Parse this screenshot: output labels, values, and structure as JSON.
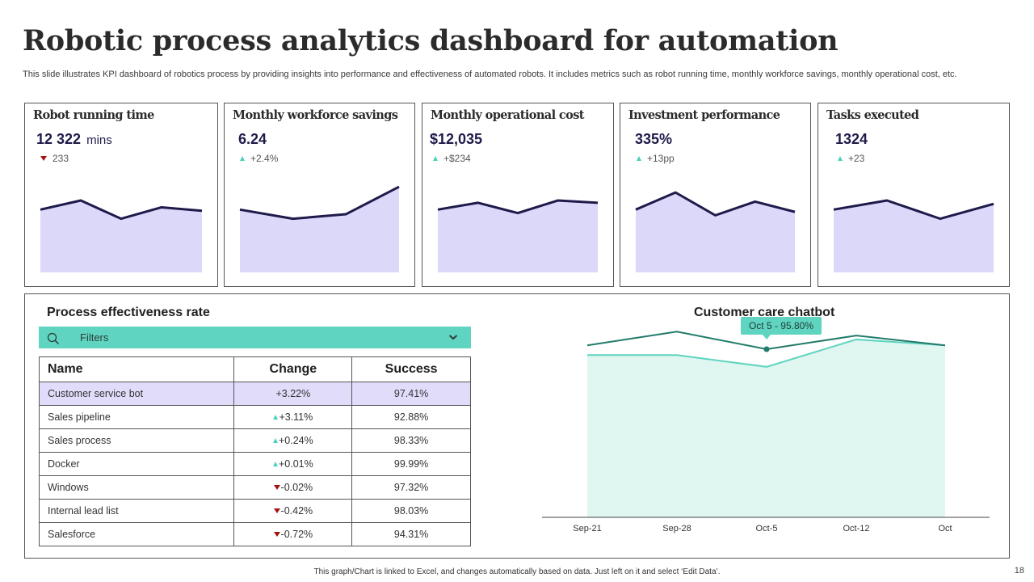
{
  "title": "Robotic process analytics dashboard for automation",
  "subtitle": "This slide illustrates KPI dashboard of robotics process by providing insights into performance and effectiveness of automated robots. It includes metrics such as robot running time, monthly workforce savings, monthly operational cost, etc.",
  "colors": {
    "accent": "#5fd4c0",
    "spark_line": "#1e1b4b",
    "spark_fill": "#dcd8fa",
    "highlight_row": "#e0dcfa",
    "down": "#a31313",
    "up": "#4fd1b8",
    "chatbot_dark": "#217a6b",
    "chatbot_light": "#5fd4c0",
    "chatbot_fill": "#dff6f1"
  },
  "kpis": [
    {
      "title": "Robot running time",
      "value": "12 322",
      "unit": "mins",
      "delta": "233",
      "direction": "down",
      "sparkline": [
        55,
        63,
        47,
        57,
        54
      ]
    },
    {
      "title": "Monthly workforce savings",
      "value": "6.24",
      "unit": "",
      "delta": "+2.4%",
      "direction": "up",
      "sparkline": [
        55,
        47,
        51,
        75
      ]
    },
    {
      "title": "Monthly operational cost",
      "value": "$12,035",
      "unit": "",
      "delta": "+$234",
      "direction": "up",
      "sparkline": [
        55,
        61,
        52,
        63,
        61
      ]
    },
    {
      "title": "Investment performance",
      "value": "335%",
      "unit": "",
      "delta": "+13pp",
      "direction": "up",
      "sparkline": [
        55,
        70,
        50,
        62,
        53
      ]
    },
    {
      "title": "Tasks executed",
      "value": "1324",
      "unit": "",
      "delta": "+23",
      "direction": "up",
      "sparkline": [
        55,
        63,
        47,
        60
      ]
    }
  ],
  "process_effectiveness": {
    "title": "Process effectiveness rate",
    "filter_label": "Filters",
    "icons": {
      "search": "search-icon",
      "dropdown": "chevron-down-icon"
    },
    "columns": [
      "Name",
      "Change",
      "Success"
    ],
    "rows": [
      {
        "name": "Customer service bot",
        "change": "+3.22%",
        "direction": "up",
        "success": "97.41%",
        "highlight": true
      },
      {
        "name": "Sales pipeline",
        "change": "+3.11%",
        "direction": "up",
        "success": "92.88%"
      },
      {
        "name": "Sales process",
        "change": "+0.24%",
        "direction": "up",
        "success": "98.33%"
      },
      {
        "name": "Docker",
        "change": "+0.01%",
        "direction": "up",
        "success": "99.99%"
      },
      {
        "name": "Windows",
        "change": "-0.02%",
        "direction": "down",
        "success": "97.32%"
      },
      {
        "name": "Internal lead list",
        "change": "-0.42%",
        "direction": "down",
        "success": "98.03%"
      },
      {
        "name": "Salesforce",
        "change": "-0.72%",
        "direction": "down",
        "success": "94.31%"
      }
    ]
  },
  "chart_data": {
    "type": "area",
    "title": "Customer care chatbot",
    "categories": [
      "Sep-21",
      "Sep-28",
      "Oct-5",
      "Oct-12",
      "Oct"
    ],
    "series": [
      {
        "values": [
          88,
          95,
          86,
          93,
          88
        ]
      },
      {
        "values": [
          83,
          83,
          77,
          91,
          88
        ]
      }
    ],
    "ylim": [
      0,
      110
    ],
    "tooltip": "Oct 5 - 95.80%",
    "grid": false
  },
  "footer": "This graph/Chart is linked to Excel, and changes automatically based on data. Just left on it and select ‘Edit Data’.",
  "page_number": "18"
}
